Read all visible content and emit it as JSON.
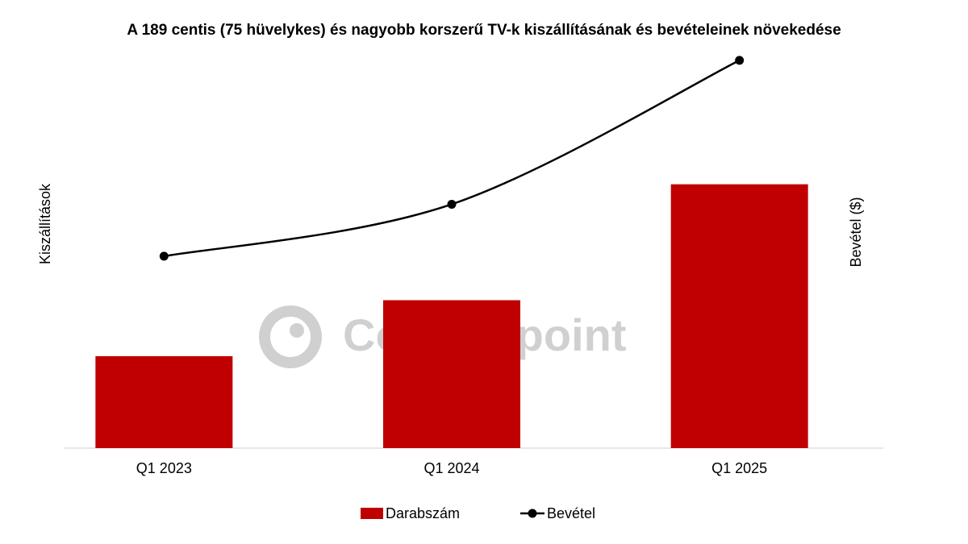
{
  "chart_data": {
    "type": "bar_line",
    "title": "A 189 centis (75 hüvelykes) és nagyobb korszerű TV-k kiszállításának és bevételeinek növekedése",
    "y_label": "Kiszállítások",
    "y2_label": "Bevétel ($)",
    "watermark": "Counterpoint",
    "categories": [
      "Q1 2023",
      "Q1 2024",
      "Q1 2025"
    ],
    "series": [
      {
        "name": "Darabszám",
        "type": "bar",
        "color": "#c00000",
        "values": [
          23,
          37,
          66
        ]
      },
      {
        "name": "Bevétel",
        "type": "line",
        "color": "#000000",
        "axis": "y2",
        "values": [
          48,
          61,
          97
        ]
      }
    ],
    "ylim": [
      0,
      100
    ],
    "y2lim": [
      0,
      100
    ],
    "legend": "bottom"
  }
}
